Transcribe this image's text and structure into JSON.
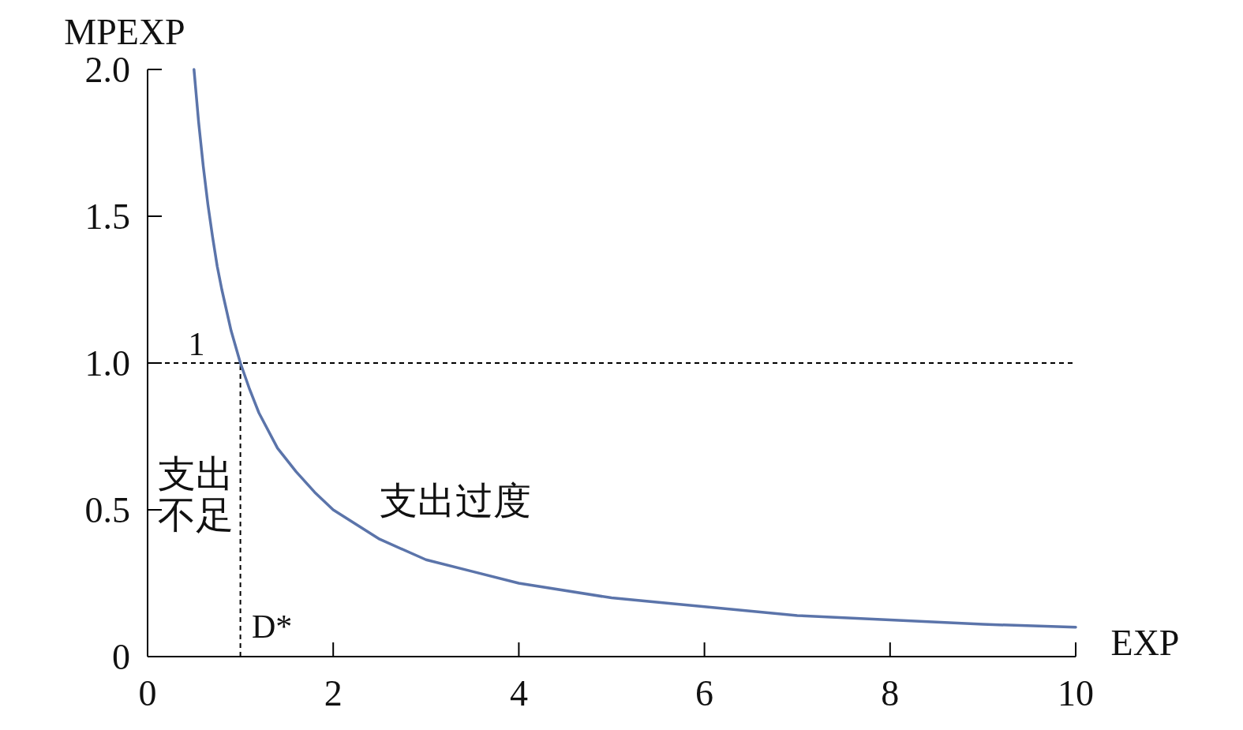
{
  "chart_data": {
    "type": "line",
    "xlabel": "EXP",
    "ylabel": "MPEXP",
    "x": [
      0.5,
      0.55,
      0.6,
      0.65,
      0.7,
      0.75,
      0.8,
      0.9,
      1,
      1.1,
      1.2,
      1.4,
      1.6,
      1.8,
      2,
      2.5,
      3,
      3.5,
      4,
      5,
      6,
      7,
      8,
      9,
      10
    ],
    "series": [
      {
        "color": "#5b74aa",
        "values": [
          2.0,
          1.82,
          1.67,
          1.54,
          1.43,
          1.33,
          1.25,
          1.11,
          1.0,
          0.91,
          0.83,
          0.71,
          0.63,
          0.56,
          0.5,
          0.4,
          0.33,
          0.29,
          0.25,
          0.2,
          0.17,
          0.14,
          0.125,
          0.11,
          0.1
        ]
      }
    ],
    "xlim": [
      0,
      10
    ],
    "xticks": [
      0,
      2,
      4,
      6,
      8,
      10
    ],
    "ylim": [
      0,
      2.0
    ],
    "yticks": [
      {
        "value": 0,
        "label": "0"
      },
      {
        "value": 0.5,
        "label": "0.5"
      },
      {
        "value": 1,
        "label": "1.0"
      },
      {
        "value": 1.5,
        "label": "1.5"
      },
      {
        "value": 2,
        "label": "2.0"
      }
    ],
    "ref_lines": [
      {
        "axis": "y",
        "value": 1,
        "label": "1",
        "color": "#000000",
        "line_style": "dashed"
      },
      {
        "axis": "x",
        "value": 1,
        "label": "D*",
        "color": "#000000",
        "line_style": "dashed"
      }
    ],
    "annotations": [
      "支出不足",
      "支出过度"
    ],
    "grid": false,
    "line_style": "solid"
  }
}
